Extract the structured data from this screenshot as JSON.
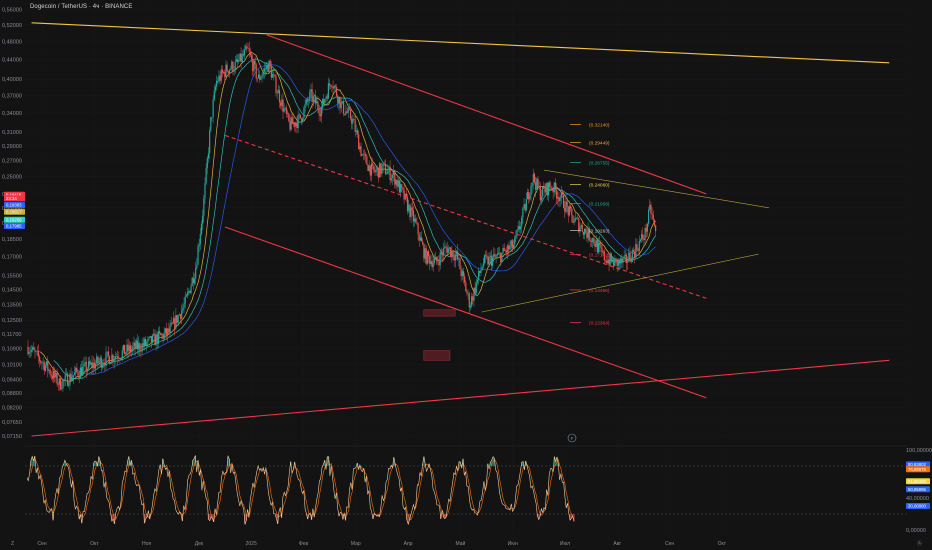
{
  "title": "Dogecoin / TetherUS · 4ч · BINANCE",
  "chart_data": {
    "type": "candlestick",
    "title": "Dogecoin / TetherUS · 4ч · BINANCE",
    "symbol": "DOGEUSDT",
    "exchange": "BINANCE",
    "interval": "4ч",
    "price_scale": "log",
    "price_range": [
      0.0715,
      0.575
    ],
    "y_ticks": [
      "0,56000",
      "0,52000",
      "0,48000",
      "0,44000",
      "0,40000",
      "0,37000",
      "0,34000",
      "0,31000",
      "0,29000",
      "0,27000",
      "0,25000",
      "0,23000",
      "0,21500",
      "0,20000",
      "0,18500",
      "0,17000",
      "0,15500",
      "0,14500",
      "0,13500",
      "0,12500",
      "0,11700",
      "0,10900",
      "0,10100",
      "0,09400",
      "0,08800",
      "0,08200",
      "0,07650",
      "0,07150"
    ],
    "x_ticks": [
      "Сен",
      "Окт",
      "Ноя",
      "Дек",
      "2025",
      "Фев",
      "Мар",
      "Апр",
      "Май",
      "Июн",
      "Июл",
      "Авг",
      "Сен",
      "Окт"
    ],
    "price_path": [
      [
        0,
        0.11
      ],
      [
        0.35,
        0.1
      ],
      [
        0.6,
        0.092
      ],
      [
        1.0,
        0.098
      ],
      [
        1.5,
        0.104
      ],
      [
        1.9,
        0.108
      ],
      [
        2.3,
        0.112
      ],
      [
        2.7,
        0.118
      ],
      [
        3.0,
        0.135
      ],
      [
        3.2,
        0.16
      ],
      [
        3.35,
        0.215
      ],
      [
        3.5,
        0.33
      ],
      [
        3.6,
        0.395
      ],
      [
        3.8,
        0.42
      ],
      [
        4.0,
        0.43
      ],
      [
        4.2,
        0.46
      ],
      [
        4.4,
        0.4
      ],
      [
        4.6,
        0.43
      ],
      [
        4.8,
        0.37
      ],
      [
        5.0,
        0.32
      ],
      [
        5.2,
        0.33
      ],
      [
        5.4,
        0.37
      ],
      [
        5.6,
        0.345
      ],
      [
        5.8,
        0.4
      ],
      [
        6.0,
        0.35
      ],
      [
        6.2,
        0.33
      ],
      [
        6.4,
        0.275
      ],
      [
        6.6,
        0.255
      ],
      [
        6.8,
        0.26
      ],
      [
        7.0,
        0.25
      ],
      [
        7.2,
        0.225
      ],
      [
        7.4,
        0.2
      ],
      [
        7.6,
        0.17
      ],
      [
        7.8,
        0.165
      ],
      [
        8.0,
        0.178
      ],
      [
        8.2,
        0.17
      ],
      [
        8.45,
        0.135
      ],
      [
        8.7,
        0.165
      ],
      [
        9.0,
        0.17
      ],
      [
        9.3,
        0.18
      ],
      [
        9.5,
        0.215
      ],
      [
        9.65,
        0.25
      ],
      [
        9.8,
        0.23
      ],
      [
        10.0,
        0.24
      ],
      [
        10.2,
        0.225
      ],
      [
        10.4,
        0.205
      ],
      [
        10.6,
        0.195
      ],
      [
        10.8,
        0.185
      ],
      [
        11.0,
        0.17
      ],
      [
        11.2,
        0.165
      ],
      [
        11.4,
        0.165
      ],
      [
        11.6,
        0.175
      ],
      [
        11.8,
        0.19
      ],
      [
        11.9,
        0.215
      ],
      [
        12.0,
        0.19
      ]
    ],
    "moving_averages": [
      {
        "color": "#f5c542",
        "value": 0.2138
      },
      {
        "color": "#2196f3",
        "value": 0.2012
      },
      {
        "color": "#2fd0c9",
        "value": 0.2052
      }
    ],
    "last_price": 0.19116,
    "price_tags": [
      {
        "label": "0,19116",
        "color": "#f23645",
        "price": 0.229
      },
      {
        "label": "23:34",
        "color": "#f23645",
        "price": 0.225
      },
      {
        "label": "0,19383",
        "color": "#2962ff",
        "price": 0.218
      },
      {
        "label": "0,18817",
        "color": "#c9b03a",
        "price": 0.211
      },
      {
        "label": "0,19256",
        "color": "#2fd0c9",
        "price": 0.203
      },
      {
        "label": "0,17985",
        "color": "#2962ff",
        "price": 0.197
      }
    ],
    "fib_levels": [
      {
        "value": 0.3214,
        "label": "(0.32140)",
        "color": "#f59a23"
      },
      {
        "value": 0.29449,
        "label": "(0.29449)",
        "color": "#f5a623"
      },
      {
        "value": 0.26755,
        "label": "(0.26755)",
        "color": "#26a69a"
      },
      {
        "value": 0.2406,
        "label": "(0.24060)",
        "color": "#f5d442"
      },
      {
        "value": 0.21958,
        "label": "(0.21958)",
        "color": "#26a69a"
      },
      {
        "value": 0.19263,
        "label": "(0.19263)",
        "color": "#c8c8c8"
      },
      {
        "value": 0.17161,
        "label": "(0.17161)",
        "color": "#f23645"
      },
      {
        "value": 0.14466,
        "label": "(0.14466)",
        "color": "#f23645"
      },
      {
        "value": 0.12364,
        "label": "(0.12364)",
        "color": "#f23645"
      }
    ],
    "trendlines": [
      {
        "color": "#f5c542",
        "from": [
          -0.2,
          0.525
        ],
        "to": [
          16.2,
          0.433
        ]
      },
      {
        "color": "#f23645",
        "from": [
          4.3,
          0.495
        ],
        "to": [
          12.7,
          0.23
        ]
      },
      {
        "color": "#f23645",
        "from": [
          3.5,
          0.196
        ],
        "to": [
          12.7,
          0.086
        ]
      },
      {
        "color": "#f23645",
        "from": [
          -0.2,
          0.0715
        ],
        "to": [
          16.2,
          0.103
        ]
      },
      {
        "color": "#f23645",
        "dashed": true,
        "from": [
          3.5,
          0.305
        ],
        "to": [
          12.7,
          0.139
        ]
      },
      {
        "color": "#b5a63a",
        "from": [
          9.6,
          0.258
        ],
        "to": [
          13.9,
          0.215
        ]
      },
      {
        "color": "#b5a63a",
        "from": [
          8.4,
          0.13
        ],
        "to": [
          13.7,
          0.172
        ]
      }
    ],
    "zones": [
      {
        "from": [
          7.3,
          0.1315
        ],
        "to": [
          7.9,
          0.1275
        ]
      },
      {
        "from": [
          7.3,
          0.108
        ],
        "to": [
          7.8,
          0.103
        ]
      }
    ],
    "oscillator": {
      "range": [
        0,
        100
      ],
      "tick_labels": [
        "100,00000",
        "40,00000",
        "0,00000"
      ],
      "tags": [
        {
          "label": "80,83802",
          "color": "#2962ff",
          "value": 82
        },
        {
          "label": "76,89078",
          "color": "#ff6d00",
          "value": 76
        },
        {
          "label": "61,80495",
          "color": "#f5d442",
          "value": 61
        },
        {
          "label": "50,85995",
          "color": "#2962ff",
          "value": 51
        },
        {
          "label": "30,00000",
          "color": "#2962ff",
          "value": 30
        }
      ],
      "levels": [
        80,
        20
      ]
    }
  },
  "axis": {
    "left_badge": "Z",
    "right_badge": "Ⓐ"
  }
}
